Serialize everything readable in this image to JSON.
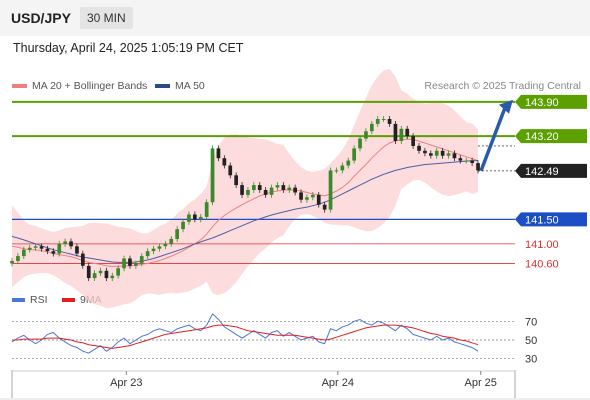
{
  "header": {
    "symbol": "USD/JPY",
    "interval": "30 MIN",
    "datetime": "Thursday, April 24, 2025 1:05:19 PM CET"
  },
  "legend": {
    "ma20_label": "MA 20 + Bollinger Bands",
    "ma50_label": "MA 50",
    "credit": "Research © 2025 Trading Central"
  },
  "rsi_legend": {
    "rsi_label": "RSI",
    "ma_label": "9MA"
  },
  "colors": {
    "resistance": "#5ba000",
    "support": "#1d4fc4",
    "minor_support": "#e03030",
    "current": "#222222",
    "bands": "#fbd0d0",
    "ma20": "#f08080",
    "ma50": "#4a60a8",
    "rsi": "#4a78d8",
    "rsi_ma": "#e02020",
    "candle_up": "#3a8a2a",
    "candle_down": "#222222",
    "arrow": "#2a5aa8"
  },
  "levels": [
    {
      "label": "143.90",
      "value": 143.9,
      "kind": "resistance"
    },
    {
      "label": "143.20",
      "value": 143.2,
      "kind": "resistance"
    },
    {
      "label": "142.49",
      "value": 142.49,
      "kind": "current"
    },
    {
      "label": "141.50",
      "value": 141.5,
      "kind": "support"
    },
    {
      "label": "141.00",
      "value": 141.0,
      "kind": "minor_support"
    },
    {
      "label": "140.60",
      "value": 140.6,
      "kind": "minor_support"
    }
  ],
  "chart_data": {
    "type": "line",
    "title": "USD/JPY 30 MIN",
    "x_labels": [
      "Apr 23",
      "Apr 24",
      "Apr 25"
    ],
    "x_label_positions": [
      20,
      57,
      82
    ],
    "x_range": [
      0,
      88
    ],
    "ylim": [
      140.2,
      144.0
    ],
    "price": [
      140.65,
      140.75,
      140.88,
      140.92,
      140.95,
      140.9,
      140.85,
      140.8,
      141.0,
      141.05,
      140.95,
      140.8,
      140.55,
      140.3,
      140.4,
      140.45,
      140.3,
      140.35,
      140.5,
      140.7,
      140.55,
      140.6,
      140.75,
      140.85,
      140.9,
      140.95,
      141.0,
      141.1,
      141.3,
      141.45,
      141.6,
      141.5,
      141.55,
      141.85,
      142.95,
      142.75,
      142.6,
      142.4,
      142.2,
      142.0,
      142.1,
      142.2,
      142.1,
      142.0,
      142.15,
      142.2,
      142.1,
      142.15,
      142.05,
      141.9,
      141.95,
      142.0,
      141.8,
      141.7,
      142.5,
      142.5,
      142.6,
      142.7,
      142.95,
      143.15,
      143.3,
      143.45,
      143.55,
      143.55,
      143.45,
      143.1,
      143.35,
      143.2,
      143.0,
      142.9,
      142.85,
      142.8,
      142.9,
      142.8,
      142.85,
      142.75,
      142.7,
      142.7,
      142.65,
      142.5
    ],
    "series": [
      {
        "name": "MA 20",
        "values": [
          140.95,
          140.93,
          140.9,
          140.88,
          140.88,
          140.86,
          140.84,
          140.8,
          140.78,
          140.76,
          140.74,
          140.7,
          140.66,
          140.62,
          140.6,
          140.58,
          140.55,
          140.54,
          140.54,
          140.55,
          140.55,
          140.56,
          140.58,
          140.6,
          140.63,
          140.66,
          140.7,
          140.75,
          140.8,
          140.86,
          140.93,
          141.0,
          141.08,
          141.2,
          141.35,
          141.48,
          141.58,
          141.66,
          141.73,
          141.8,
          141.86,
          141.92,
          141.98,
          142.02,
          142.06,
          142.08,
          142.1,
          142.1,
          142.1,
          142.08,
          142.05,
          142.02,
          142.0,
          141.98,
          142.02,
          142.08,
          142.15,
          142.25,
          142.38,
          142.5,
          142.62,
          142.75,
          142.87,
          142.98,
          143.06,
          143.1,
          143.13,
          143.14,
          143.13,
          143.1,
          143.06,
          143.02,
          142.98,
          142.94,
          142.9,
          142.86,
          142.82,
          142.78,
          142.74,
          142.7
        ]
      },
      {
        "name": "MA 50",
        "values": [
          141.15,
          141.12,
          141.08,
          141.04,
          141.0,
          140.96,
          140.92,
          140.88,
          140.85,
          140.82,
          140.79,
          140.76,
          140.73,
          140.71,
          140.69,
          140.67,
          140.65,
          140.63,
          140.62,
          140.62,
          140.62,
          140.63,
          140.65,
          140.67,
          140.7,
          140.74,
          140.78,
          140.82,
          140.86,
          140.9,
          140.95,
          141.0,
          141.04,
          141.08,
          141.12,
          141.17,
          141.22,
          141.27,
          141.32,
          141.37,
          141.42,
          141.47,
          141.51,
          141.55,
          141.59,
          141.62,
          141.65,
          141.68,
          141.71,
          141.73,
          141.75,
          141.78,
          141.81,
          141.85,
          141.9,
          141.96,
          142.02,
          142.08,
          142.14,
          142.2,
          142.26,
          142.32,
          142.37,
          142.42,
          142.46,
          142.5,
          142.53,
          142.56,
          142.58,
          142.6,
          142.62,
          142.63,
          142.64,
          142.65,
          142.66,
          142.67,
          142.68,
          142.69,
          142.7,
          142.7
        ]
      }
    ],
    "rsi": {
      "ylim": [
        20,
        80
      ],
      "ticks": [
        70,
        50,
        30
      ],
      "rsi": [
        48,
        52,
        55,
        50,
        46,
        50,
        56,
        58,
        52,
        48,
        44,
        42,
        38,
        36,
        40,
        44,
        38,
        42,
        48,
        52,
        46,
        50,
        54,
        56,
        60,
        62,
        60,
        58,
        62,
        64,
        66,
        62,
        60,
        66,
        78,
        72,
        64,
        60,
        56,
        52,
        56,
        60,
        56,
        52,
        58,
        60,
        54,
        58,
        54,
        50,
        52,
        54,
        48,
        46,
        62,
        60,
        64,
        66,
        70,
        72,
        68,
        66,
        70,
        68,
        64,
        60,
        66,
        62,
        56,
        54,
        52,
        50,
        54,
        50,
        52,
        48,
        46,
        44,
        42,
        38
      ],
      "ma9": [
        50,
        50,
        51,
        51,
        51,
        51,
        52,
        52,
        52,
        51,
        50,
        48,
        47,
        45,
        44,
        43,
        42,
        41,
        42,
        43,
        44,
        46,
        48,
        50,
        52,
        54,
        56,
        57,
        58,
        59,
        60,
        61,
        62,
        63,
        65,
        66,
        66,
        65,
        64,
        62,
        60,
        59,
        58,
        57,
        56,
        55,
        55,
        55,
        55,
        54,
        53,
        52,
        51,
        50,
        51,
        53,
        55,
        57,
        59,
        61,
        63,
        64,
        65,
        66,
        66,
        66,
        65,
        64,
        63,
        61,
        59,
        57,
        56,
        54,
        53,
        52,
        50,
        49,
        47,
        45
      ]
    }
  }
}
